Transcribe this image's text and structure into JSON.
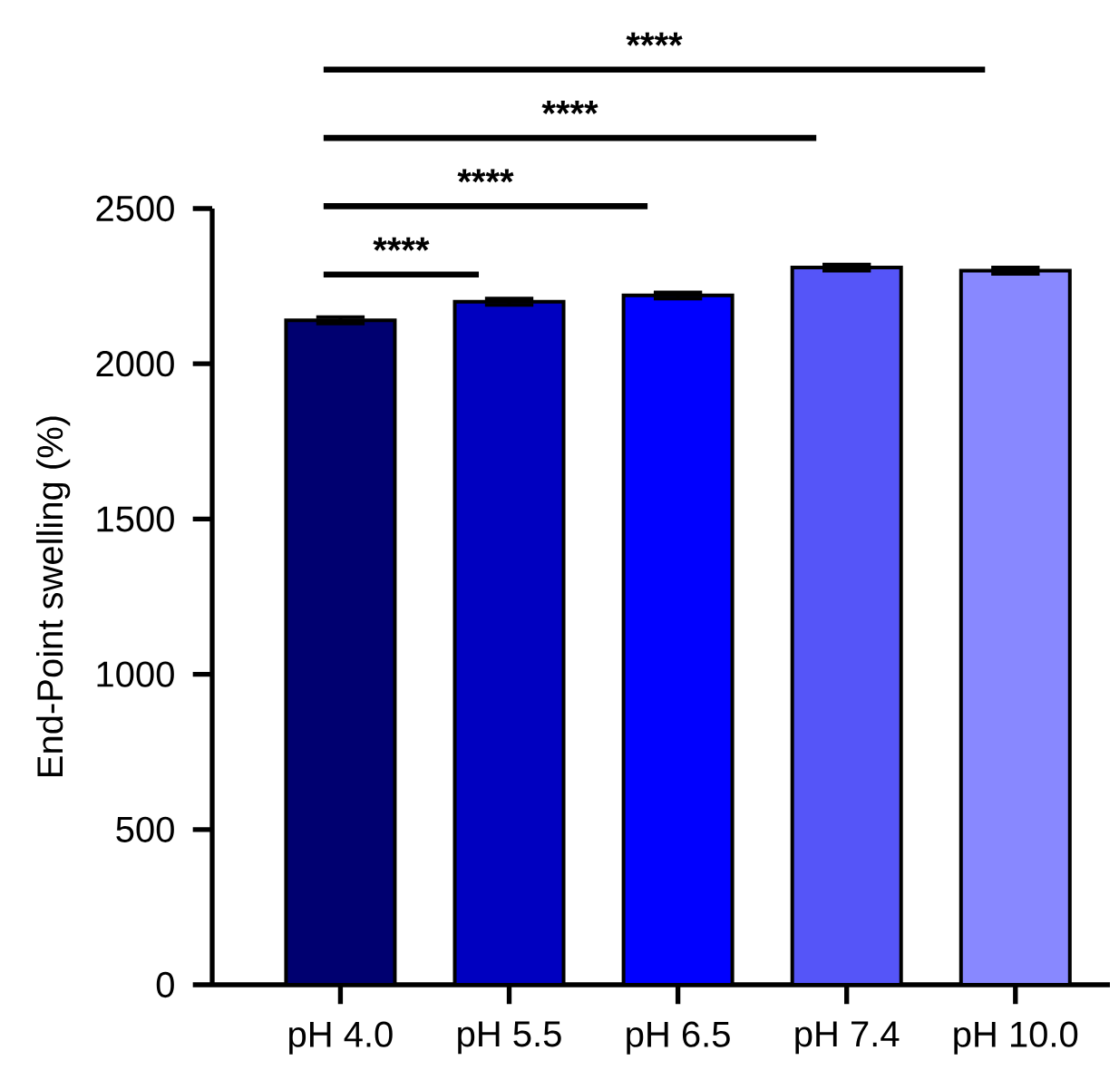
{
  "chart_data": {
    "type": "bar",
    "categories": [
      "pH 4.0",
      "pH 5.5",
      "pH 6.5",
      "pH 7.4",
      "pH 10.0"
    ],
    "values": [
      2140,
      2200,
      2220,
      2310,
      2300
    ],
    "errors": [
      10,
      10,
      10,
      10,
      10
    ],
    "colors": [
      "#000070",
      "#0000c0",
      "#0000ff",
      "#5555f8",
      "#8888ff"
    ],
    "ylabel": "End-Point swelling (%)",
    "ylim": [
      0,
      2500
    ],
    "yticks": [
      0,
      500,
      1000,
      1500,
      2000,
      2500
    ],
    "annotations": [
      "****",
      "****",
      "****",
      "****"
    ]
  }
}
